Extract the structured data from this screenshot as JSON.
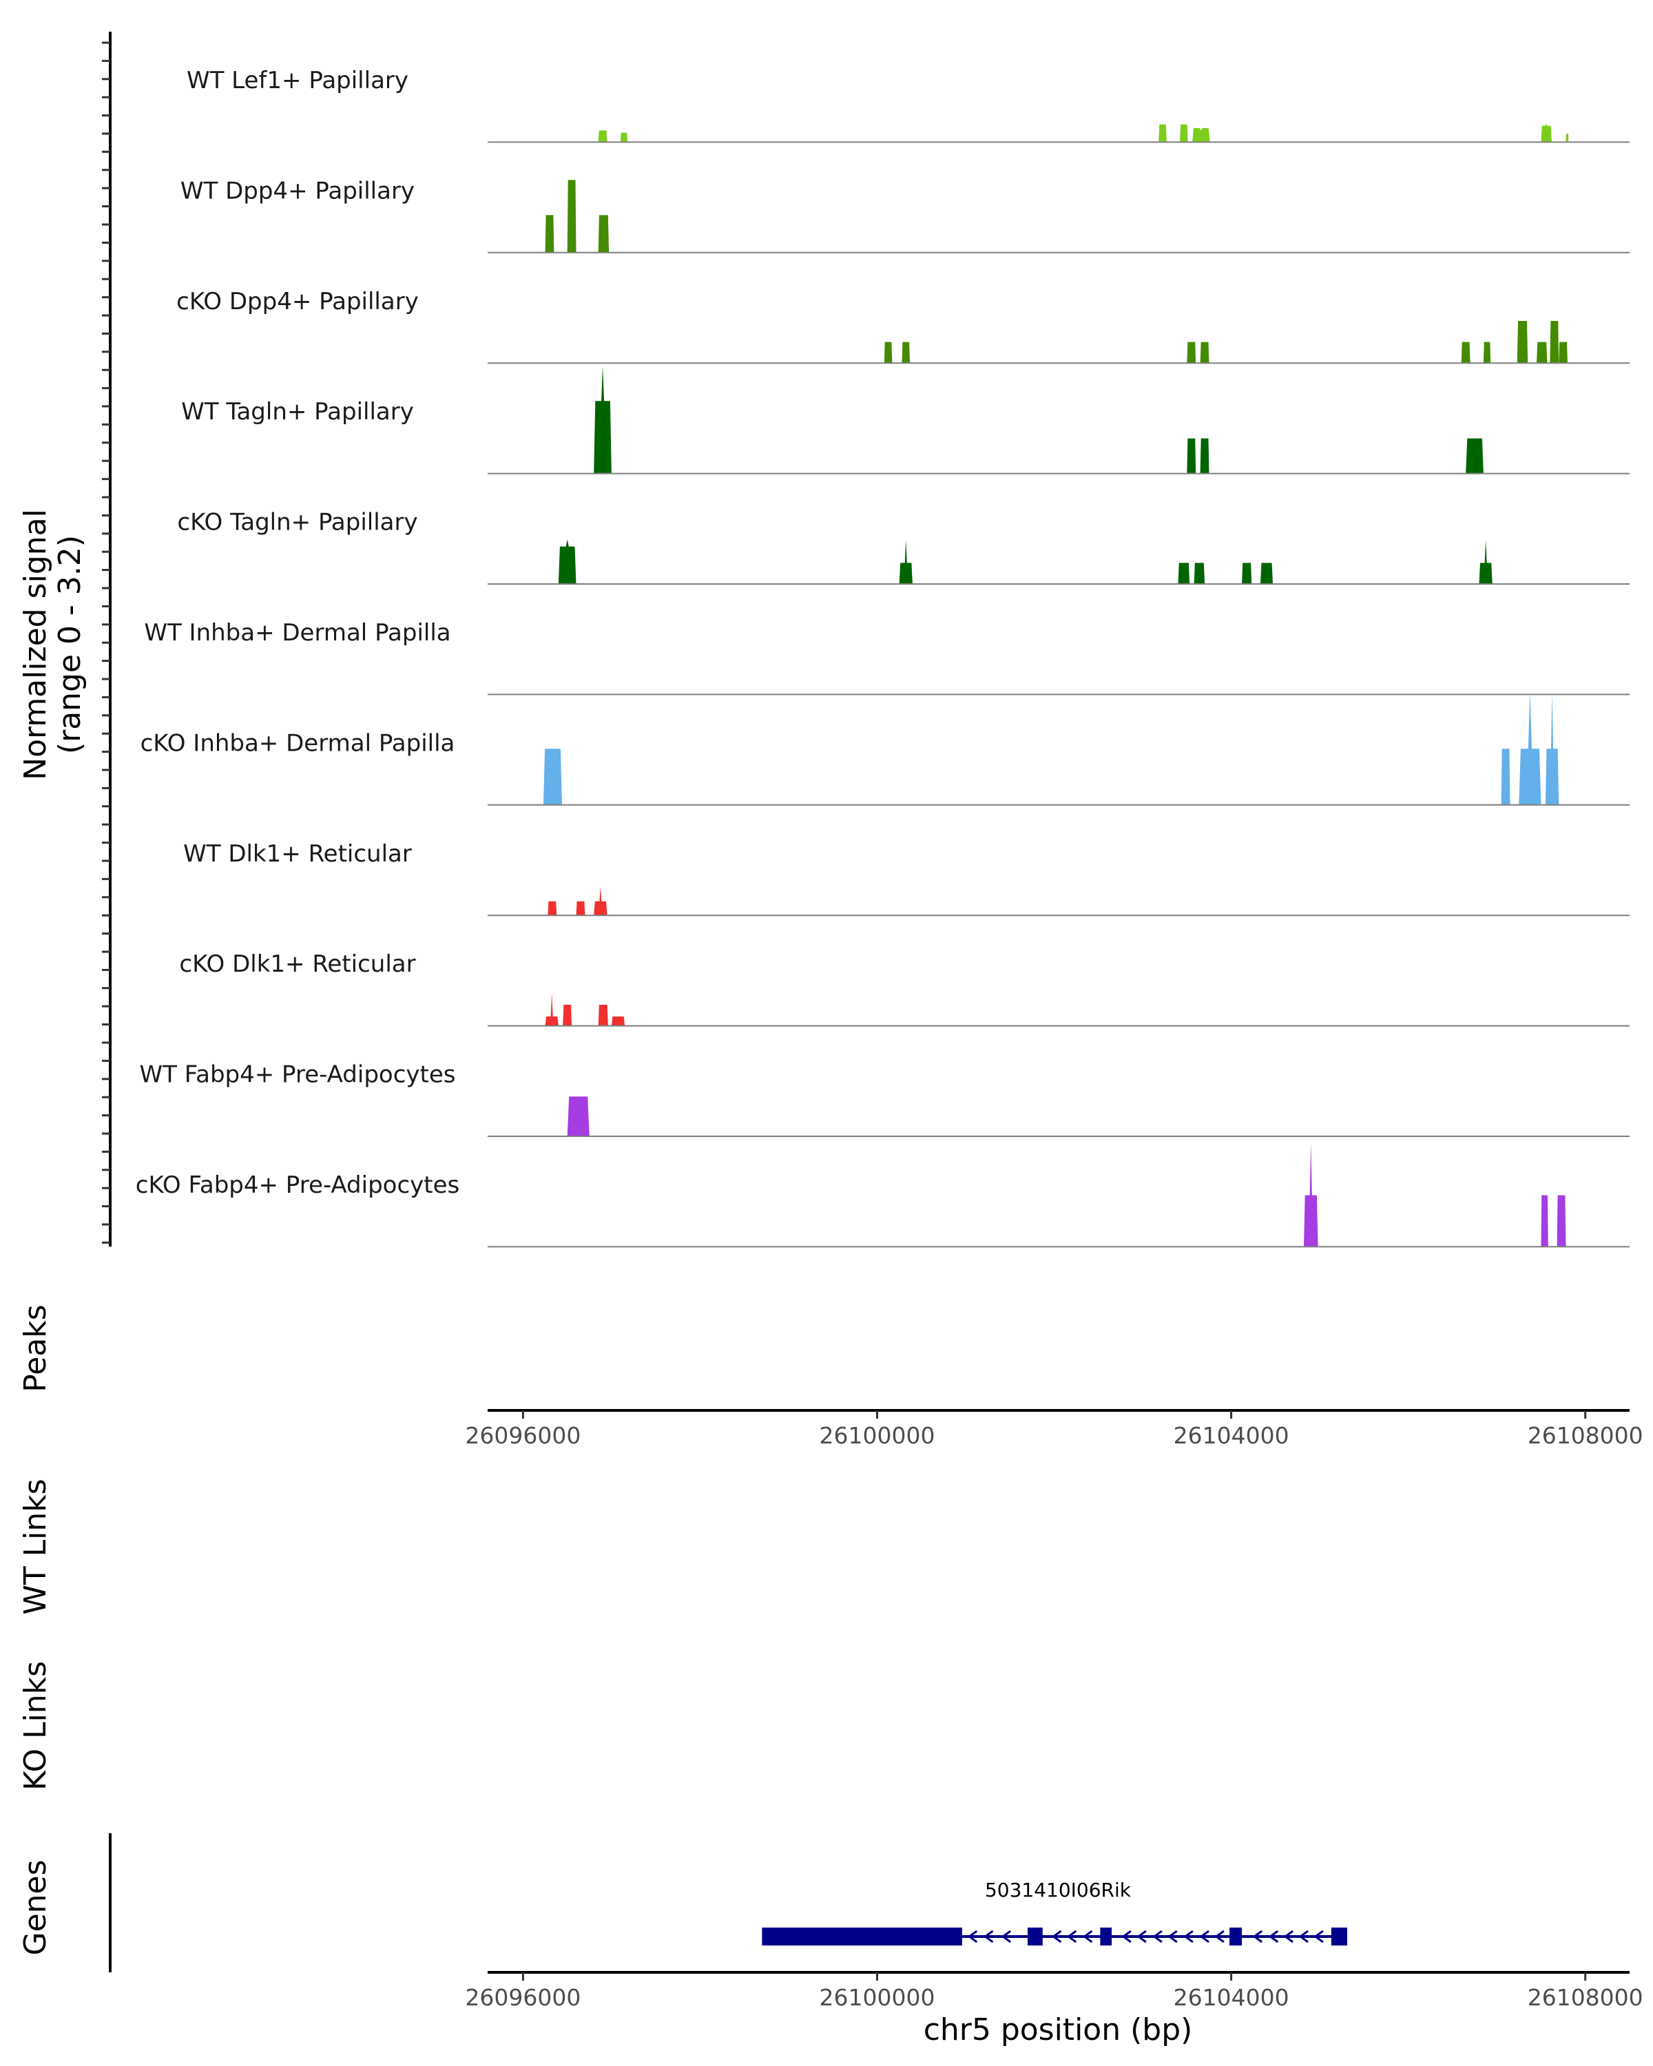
{
  "chart_data": {
    "type": "area",
    "title": "",
    "xlabel": "chr5 position (bp)",
    "xlim": [
      26095600,
      26108500
    ],
    "x_ticks": [
      "26096000",
      "26100000",
      "26104000",
      "26108000"
    ],
    "x_tick_values": [
      26096000,
      26100000,
      26104000,
      26108000
    ],
    "coverage": {
      "ylabel_line1": "Normalized signal",
      "ylabel_line2": "(range 0 - 3.2)",
      "ylim": [
        0,
        3.2
      ],
      "tracks": [
        {
          "name": "WT Lef1+ Papillary",
          "color": "#7CCD1D",
          "segments": [
            {
              "x": [
                26096850,
                26096950
              ],
              "y": [
                0.25,
                0.25
              ]
            },
            {
              "x": [
                26097100,
                26097180
              ],
              "y": [
                0.2,
                0.2
              ]
            },
            {
              "x": [
                26103180,
                26103270
              ],
              "y": [
                0.38,
                0.38
              ]
            },
            {
              "x": [
                26103420,
                26103510
              ],
              "y": [
                0.38,
                0.38
              ]
            },
            {
              "x": [
                26103560,
                26103760
              ],
              "y": [
                0.3,
                0.25
              ]
            },
            {
              "x": [
                26107500,
                26107620
              ],
              "y": [
                0.35,
                0.4
              ]
            },
            {
              "x": [
                26107780,
                26107810
              ],
              "y": [
                0.18,
                0.18
              ]
            }
          ]
        },
        {
          "name": "WT Dpp4+ Papillary",
          "color": "#458B00",
          "segments": [
            {
              "x": [
                26096250,
                26096350
              ],
              "y": [
                0.8,
                0.8
              ]
            },
            {
              "x": [
                26096500,
                26096600
              ],
              "y": [
                1.55,
                1.55
              ]
            },
            {
              "x": [
                26096850,
                26096970
              ],
              "y": [
                0.8,
                0.8
              ]
            }
          ]
        },
        {
          "name": "cKO Dpp4+ Papillary",
          "color": "#458B00",
          "segments": [
            {
              "x": [
                26100080,
                26100170
              ],
              "y": [
                0.45,
                0.45
              ]
            },
            {
              "x": [
                26100280,
                26100370
              ],
              "y": [
                0.45,
                0.45
              ]
            },
            {
              "x": [
                26103500,
                26103600
              ],
              "y": [
                0.45,
                0.45
              ]
            },
            {
              "x": [
                26103650,
                26103750
              ],
              "y": [
                0.45,
                0.45
              ]
            },
            {
              "x": [
                26106600,
                26106700
              ],
              "y": [
                0.45,
                0.45
              ]
            },
            {
              "x": [
                26106850,
                26106930
              ],
              "y": [
                0.45,
                0.45
              ]
            },
            {
              "x": [
                26107230,
                26107350
              ],
              "y": [
                0.9,
                0.9
              ]
            },
            {
              "x": [
                26107450,
                26107570
              ],
              "y": [
                0.45,
                0.45
              ]
            },
            {
              "x": [
                26107600,
                26107700
              ],
              "y": [
                0.9,
                0.9
              ]
            },
            {
              "x": [
                26107700,
                26107800
              ],
              "y": [
                0.45,
                0.45
              ]
            }
          ]
        },
        {
          "name": "WT Tagln+ Papillary",
          "color": "#006400",
          "segments": [
            {
              "x": [
                26096800,
                26097000
              ],
              "y": [
                1.55,
                2.3
              ]
            },
            {
              "x": [
                26103500,
                26103600
              ],
              "y": [
                0.75,
                0.75
              ]
            },
            {
              "x": [
                26103650,
                26103750
              ],
              "y": [
                0.75,
                0.75
              ]
            },
            {
              "x": [
                26106650,
                26106850
              ],
              "y": [
                0.75,
                0.75
              ]
            }
          ]
        },
        {
          "name": "cKO Tagln+ Papillary",
          "color": "#006400",
          "segments": [
            {
              "x": [
                26096400,
                26096600
              ],
              "y": [
                0.8,
                0.95
              ]
            },
            {
              "x": [
                26100250,
                26100400
              ],
              "y": [
                0.45,
                0.95
              ]
            },
            {
              "x": [
                26103400,
                26103530
              ],
              "y": [
                0.45,
                0.45
              ]
            },
            {
              "x": [
                26103580,
                26103700
              ],
              "y": [
                0.45,
                0.45
              ]
            },
            {
              "x": [
                26104120,
                26104230
              ],
              "y": [
                0.45,
                0.45
              ]
            },
            {
              "x": [
                26104330,
                26104470
              ],
              "y": [
                0.45,
                0.45
              ]
            },
            {
              "x": [
                26106800,
                26106950
              ],
              "y": [
                0.45,
                0.95
              ]
            }
          ]
        },
        {
          "name": "WT Inhba+ Dermal Papilla",
          "color": "#63B0EA",
          "segments": []
        },
        {
          "name": "cKO Inhba+ Dermal Papilla",
          "color": "#63B0EA",
          "segments": [
            {
              "x": [
                26096230,
                26096440
              ],
              "y": [
                1.2,
                1.2
              ]
            },
            {
              "x": [
                26107050,
                26107150
              ],
              "y": [
                1.2,
                1.2
              ]
            },
            {
              "x": [
                26107250,
                26107500
              ],
              "y": [
                1.2,
                2.4
              ]
            },
            {
              "x": [
                26107550,
                26107700
              ],
              "y": [
                1.2,
                2.4
              ]
            }
          ]
        },
        {
          "name": "WT Dlk1+ Reticular",
          "color": "#F0302E",
          "segments": [
            {
              "x": [
                26096280,
                26096380
              ],
              "y": [
                0.3,
                0.3
              ]
            },
            {
              "x": [
                26096600,
                26096700
              ],
              "y": [
                0.3,
                0.3
              ]
            },
            {
              "x": [
                26096800,
                26096950
              ],
              "y": [
                0.3,
                0.6
              ]
            }
          ]
        },
        {
          "name": "cKO Dlk1+ Reticular",
          "color": "#F0302E",
          "segments": [
            {
              "x": [
                26096250,
                26096400
              ],
              "y": [
                0.2,
                0.7
              ]
            },
            {
              "x": [
                26096450,
                26096550
              ],
              "y": [
                0.45,
                0.45
              ]
            },
            {
              "x": [
                26096850,
                26096960
              ],
              "y": [
                0.45,
                0.45
              ]
            },
            {
              "x": [
                26097000,
                26097150
              ],
              "y": [
                0.2,
                0.2
              ]
            }
          ]
        },
        {
          "name": "WT Fabp4+ Pre-Adipocytes",
          "color": "#A53DE2",
          "segments": [
            {
              "x": [
                26096500,
                26096750
              ],
              "y": [
                0.85,
                0.85
              ]
            }
          ]
        },
        {
          "name": "cKO Fabp4+ Pre-Adipocytes",
          "color": "#A53DE2",
          "segments": [
            {
              "x": [
                26104820,
                26104980
              ],
              "y": [
                1.1,
                2.2
              ]
            },
            {
              "x": [
                26107500,
                26107580
              ],
              "y": [
                1.1,
                1.1
              ]
            },
            {
              "x": [
                26107680,
                26107780
              ],
              "y": [
                1.1,
                1.1
              ]
            }
          ]
        }
      ]
    },
    "peaks": {
      "label": "Peaks",
      "regions": []
    },
    "links": [
      {
        "label": "WT Links",
        "links": []
      },
      {
        "label": "KO Links",
        "links": []
      }
    ],
    "genes": {
      "label": "Genes",
      "gene": {
        "name": "5031410I06Rik",
        "strand": "-",
        "start": 26098700,
        "end": 26105300,
        "exons": [
          [
            26098700,
            26100960
          ],
          [
            26101700,
            26101870
          ],
          [
            26102520,
            26102650
          ],
          [
            26103980,
            26104120
          ],
          [
            26105130,
            26105310
          ]
        ],
        "arrow_positions": [
          26101080,
          26101260,
          26101460,
          26102030,
          26102200,
          26102380,
          26102820,
          26102990,
          26103170,
          26103340,
          26103520,
          26103700,
          26103870,
          26104300,
          26104480,
          26104650,
          26104820,
          26104990
        ]
      }
    },
    "colors": {
      "baseline": "#7F7F7F",
      "axis": "#000000",
      "gene": "#00008B",
      "tick_label": "#4D4D4D"
    }
  }
}
